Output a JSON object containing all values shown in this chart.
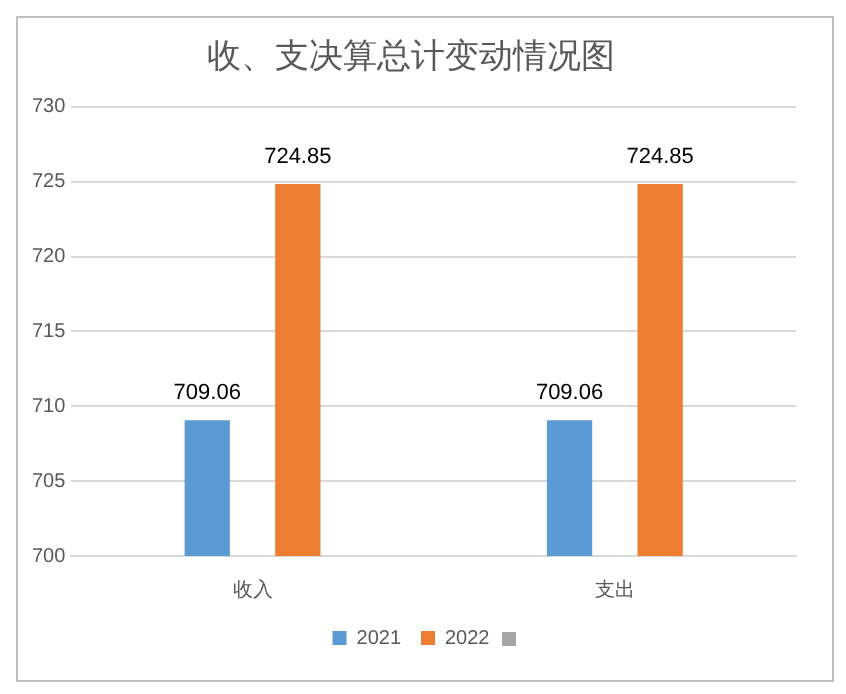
{
  "chart_data": {
    "type": "bar",
    "title": "收、支决算总计变动情况图",
    "categories": [
      "收入",
      "支出"
    ],
    "series": [
      {
        "name": "2021",
        "color": "#5b9bd5",
        "values": [
          709.06,
          709.06
        ]
      },
      {
        "name": "2022",
        "color": "#ed7d31",
        "values": [
          724.85,
          724.85
        ]
      }
    ],
    "ylim": [
      700,
      730
    ],
    "yticks": [
      700,
      705,
      710,
      715,
      720,
      725,
      730
    ],
    "grid": "y",
    "legend": "bottom",
    "data_labels": true
  }
}
